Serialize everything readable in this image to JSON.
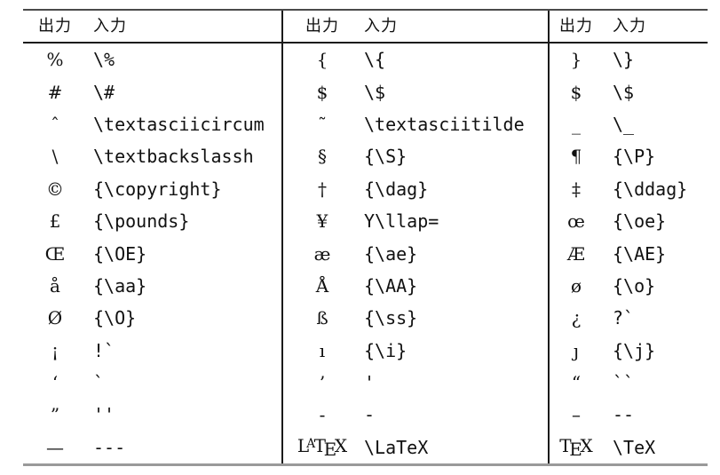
{
  "page": {
    "background": "#ffffff",
    "text_color": "#111111"
  },
  "table": {
    "rules": {
      "top_color": "#4a4a4a",
      "header_color": "#1a1a1a",
      "separator_color": "#1a1a1a",
      "bottom_color": "#9a9a9a"
    },
    "groups": [
      {
        "header": {
          "output": "出力",
          "input": "入力"
        },
        "rows": [
          {
            "output": "%",
            "input": "\\%"
          },
          {
            "output": "#",
            "input": "\\#"
          },
          {
            "output": "ˆ",
            "input": "\\textasciicircum"
          },
          {
            "output": "\\",
            "input": "\\textbackslassh"
          },
          {
            "output": "©",
            "input": "{\\copyright}"
          },
          {
            "output": "£",
            "input": "{\\pounds}"
          },
          {
            "output": "Œ",
            "input": "{\\OE}"
          },
          {
            "output": "å",
            "input": "{\\aa}"
          },
          {
            "output": "Ø",
            "input": "{\\O}"
          },
          {
            "output": "¡",
            "input": "!`"
          },
          {
            "output": "‘",
            "input": "`"
          },
          {
            "output": "”",
            "input": "''"
          },
          {
            "output": "—",
            "input": "---"
          }
        ]
      },
      {
        "header": {
          "output": "出力",
          "input": "入力"
        },
        "rows": [
          {
            "output": "{",
            "input": "\\{"
          },
          {
            "output": "$",
            "input": "\\$"
          },
          {
            "output": "˜",
            "input": "\\textasciitilde"
          },
          {
            "output": "§",
            "input": "{\\S}"
          },
          {
            "output": "†",
            "input": "{\\dag}"
          },
          {
            "output": "¥",
            "input": "Y\\llap="
          },
          {
            "output": "æ",
            "input": "{\\ae}"
          },
          {
            "output": "Å",
            "input": "{\\AA}"
          },
          {
            "output": "ß",
            "input": "{\\ss}"
          },
          {
            "output": "ı",
            "input": "{\\i}"
          },
          {
            "output": "’",
            "input": "'"
          },
          {
            "output": "-",
            "input": "-"
          },
          {
            "output": "LaTeX",
            "logo": true,
            "input": "\\LaTeX"
          }
        ]
      },
      {
        "header": {
          "output": "出力",
          "input": "入力"
        },
        "rows": [
          {
            "output": "}",
            "input": "\\}"
          },
          {
            "output": "$",
            "input": "\\$"
          },
          {
            "output": "_",
            "input": "\\_"
          },
          {
            "output": "¶",
            "input": "{\\P}"
          },
          {
            "output": "‡",
            "input": "{\\ddag}"
          },
          {
            "output": "œ",
            "input": "{\\oe}"
          },
          {
            "output": "Æ",
            "input": "{\\AE}"
          },
          {
            "output": "ø",
            "input": "{\\o}"
          },
          {
            "output": "¿",
            "input": "?`"
          },
          {
            "output": "ȷ",
            "input": "{\\j}"
          },
          {
            "output": "“",
            "input": "``"
          },
          {
            "output": "–",
            "input": "--"
          },
          {
            "output": "TeX",
            "logo": true,
            "input": "\\TeX"
          }
        ]
      }
    ]
  }
}
